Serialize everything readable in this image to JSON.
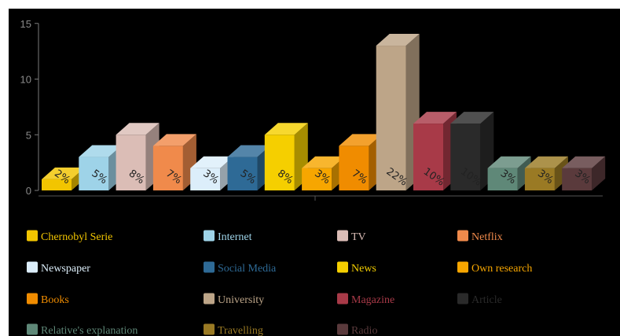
{
  "chart_data": {
    "type": "bar",
    "title": "",
    "xlabel": "",
    "ylabel": "",
    "ylim": [
      0,
      15
    ],
    "yticks": [
      0,
      5,
      10,
      15
    ],
    "grid": false,
    "legend_placement": "bottom",
    "categories": [
      "Chernobyl Serie",
      "Internet",
      "TV",
      "Netflix",
      "Newspaper",
      "Social Media",
      "News",
      "Own research",
      "Books",
      "University",
      "Magazine",
      "Article",
      "Relative's explanation",
      "Travelling",
      "Radio"
    ],
    "values": [
      1,
      3,
      5,
      4,
      2,
      3,
      5,
      2,
      4,
      13,
      6,
      6,
      2,
      2,
      2
    ],
    "labels": [
      "2%",
      "5%",
      "8%",
      "7%",
      "3%",
      "5%",
      "8%",
      "3%",
      "7%",
      "22%",
      "10%",
      "10%",
      "3%",
      "3%",
      "3%"
    ],
    "colors": [
      "#f2c500",
      "#9ed3e8",
      "#dbbdb6",
      "#f08a4b",
      "#dceefa",
      "#2e6a96",
      "#f5cf00",
      "#f7a600",
      "#f08c00",
      "#bda588",
      "#a83a48",
      "#2a2a2a",
      "#5f8878",
      "#9a7a24",
      "#5a3a3c"
    ]
  }
}
